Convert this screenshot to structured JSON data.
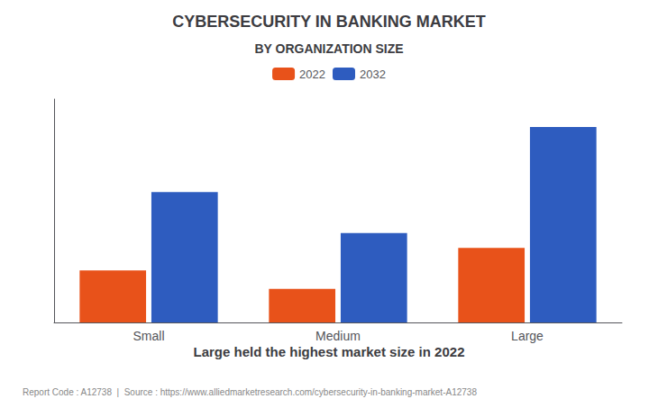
{
  "chart_data": {
    "type": "bar",
    "title": "CYBERSECURITY IN BANKING MARKET",
    "subtitle": "BY ORGANIZATION SIZE",
    "categories": [
      "Small",
      "Medium",
      "Large"
    ],
    "series": [
      {
        "name": "2022",
        "color": "#E8521A",
        "values": [
          2.8,
          1.8,
          4.0
        ]
      },
      {
        "name": "2032",
        "color": "#2E5CBF",
        "values": [
          7.0,
          4.8,
          10.5
        ]
      }
    ],
    "ylim": [
      0,
      12
    ],
    "grid": false,
    "tick_labels": "x",
    "legend": "top",
    "caption": "Large held the highest market size in 2022",
    "footer": "Report Code : A12738  |  Source : https://www.alliedmarketresearch.com/cybersecurity-in-banking-market-A12738"
  }
}
